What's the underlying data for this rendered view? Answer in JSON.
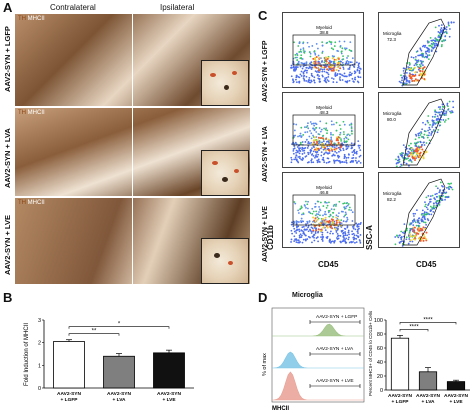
{
  "panelA": {
    "letter": "A",
    "contralateral": "Contralateral",
    "ipsilateral": "Ipsilateral",
    "rows": [
      {
        "label": "AAV2-SYN + LGFP",
        "stain_th": "TH",
        "stain_mhc": "MHCII"
      },
      {
        "label": "AAV2-SYN + LVA",
        "stain_th": "TH",
        "stain_mhc": "MHCII"
      },
      {
        "label": "AAV2-SYN + LVE",
        "stain_th": "TH",
        "stain_mhc": "MHCII"
      }
    ]
  },
  "panelB": {
    "letter": "B",
    "ylabel": "Fold Induction of MHCII",
    "sig1": "**",
    "sig2": "*",
    "chart_data": {
      "type": "bar",
      "categories": [
        "AAV2-SYN + LGFP",
        "AAV2-SYN + LVA",
        "AAV2-SYN + LVE"
      ],
      "values": [
        2.05,
        1.4,
        1.55
      ],
      "errors": [
        0.08,
        0.12,
        0.12
      ],
      "colors": [
        "#ffffff",
        "#7f7f7f",
        "#111111"
      ],
      "ylim": [
        0,
        3
      ],
      "yticks": [
        "0",
        "1",
        "2",
        "3"
      ]
    }
  },
  "panelC": {
    "letter": "C",
    "row_labels": [
      "AAV2-SYN + LGFP",
      "AAV2-SYN + LVA",
      "AAV2-SYN + LVE"
    ],
    "left_ylabel": "CD11b",
    "left_xlabel": "CD45",
    "right_ylabel": "SSC-A",
    "right_xlabel": "CD45",
    "myeloid": [
      {
        "name": "Myeloid",
        "value": "38.8"
      },
      {
        "name": "Myeloid",
        "value": "48.3"
      },
      {
        "name": "Myeloid",
        "value": "46.8"
      }
    ],
    "microglia": [
      {
        "name": "Microglia",
        "value": "72.3"
      },
      {
        "name": "Microglia",
        "value": "80.0"
      },
      {
        "name": "Microglia",
        "value": "82.2"
      }
    ]
  },
  "panelD": {
    "letter": "D",
    "title": "Microglia",
    "hist_ylabel": "% of max",
    "hist_xlabel": "MHCII",
    "traces": [
      {
        "label": "AAV2-SYN + LGFP",
        "color": "#9dc183"
      },
      {
        "label": "AAV2-SYN + LVA",
        "color": "#7ec6e6"
      },
      {
        "label": "AAV2-SYN + LVE",
        "color": "#e9a094"
      }
    ],
    "bar_ylabel": "Percent MHCII+ of CD45 lo CD11b+ Cells",
    "sig1": "****",
    "sig2": "****",
    "chart_data": {
      "type": "bar",
      "categories": [
        "AAV2-SYN + LGFP",
        "AAV2-SYN + LVA",
        "AAV2-SYN + LVE"
      ],
      "values": [
        74,
        26,
        12
      ],
      "errors": [
        4,
        6,
        2
      ],
      "colors": [
        "#ffffff",
        "#7f7f7f",
        "#111111"
      ],
      "ylim": [
        0,
        100
      ],
      "yticks": [
        "0",
        "20",
        "40",
        "60",
        "80",
        "100"
      ]
    }
  }
}
